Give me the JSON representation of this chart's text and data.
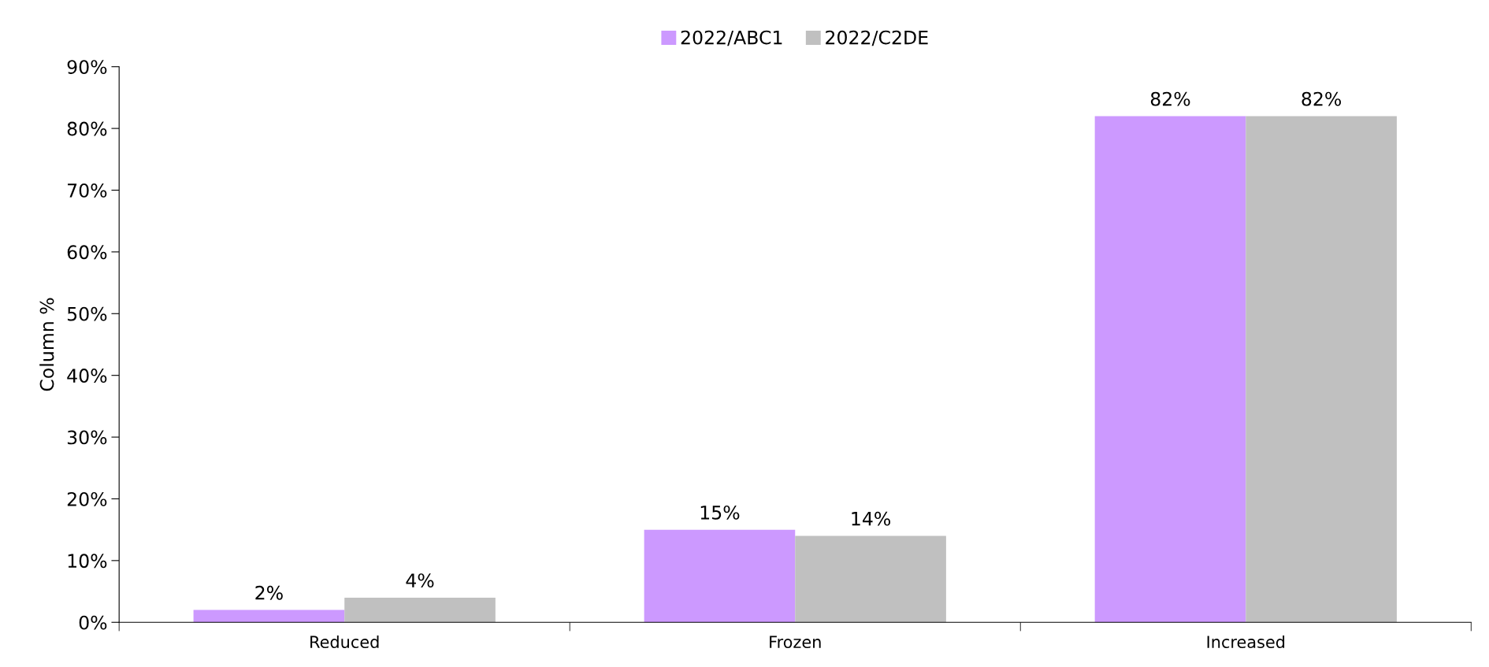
{
  "chart_data": {
    "type": "bar",
    "ylabel": "Column %",
    "categories": [
      "Reduced",
      "Frozen",
      "Increased"
    ],
    "series": [
      {
        "name": "2022/ABC1",
        "color": "#cc99ff",
        "values": [
          2,
          15,
          82
        ],
        "value_labels": [
          "2%",
          "15%",
          "82%"
        ]
      },
      {
        "name": "2022/C2DE",
        "color": "#c0c0c0",
        "values": [
          4,
          14,
          82
        ],
        "value_labels": [
          "4%",
          "14%",
          "82%"
        ]
      }
    ],
    "ylim": [
      0,
      90
    ],
    "yticks": [
      {
        "value": 0,
        "label": "0%"
      },
      {
        "value": 10,
        "label": "10%"
      },
      {
        "value": 20,
        "label": "20%"
      },
      {
        "value": 30,
        "label": "30%"
      },
      {
        "value": 40,
        "label": "40%"
      },
      {
        "value": 50,
        "label": "50%"
      },
      {
        "value": 60,
        "label": "60%"
      },
      {
        "value": 70,
        "label": "70%"
      },
      {
        "value": 80,
        "label": "80%"
      },
      {
        "value": 90,
        "label": "90%"
      }
    ],
    "grid": false,
    "legend": "top"
  }
}
